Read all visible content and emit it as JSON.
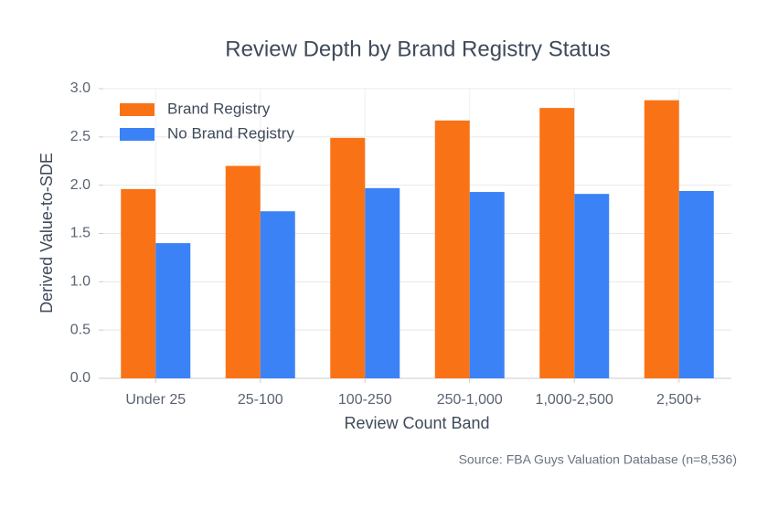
{
  "chart_data": {
    "type": "bar",
    "title": "Review Depth by Brand Registry Status",
    "x_label": "Review Count Band",
    "y_label": "Derived Value-to-SDE",
    "source": "Source: FBA Guys Valuation Database (n=8,536)",
    "categories": [
      "Under 25",
      "25-100",
      "100-250",
      "250-1,000",
      "1,000-2,500",
      "2,500+"
    ],
    "series": [
      {
        "name": "Brand Registry",
        "color": "#f97316",
        "values": [
          1.96,
          2.2,
          2.49,
          2.67,
          2.8,
          2.88
        ]
      },
      {
        "name": "No Brand Registry",
        "color": "#3b82f6",
        "values": [
          1.4,
          1.73,
          1.97,
          1.93,
          1.91,
          1.94
        ]
      }
    ],
    "ylim": [
      0,
      3
    ],
    "yticks": [
      {
        "value": 0,
        "label": "0.0"
      },
      0.5,
      {
        "value": 1,
        "label": "1.0"
      },
      1.5,
      {
        "value": 2,
        "label": "2.0"
      },
      2.5,
      {
        "value": 3,
        "label": "3.0"
      }
    ],
    "grid": true,
    "legend": "upper-left"
  }
}
